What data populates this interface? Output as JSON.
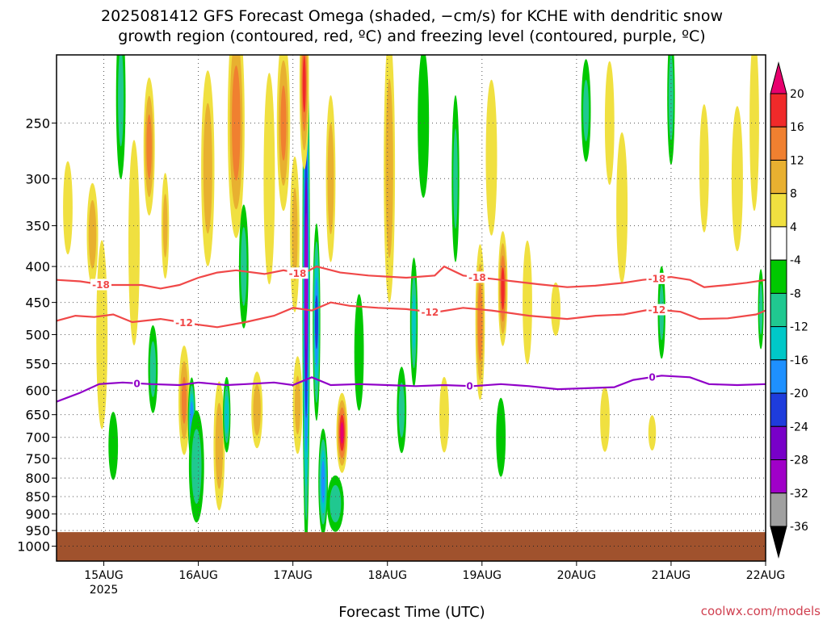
{
  "title": {
    "line1": "2025081412 GFS Forecast Omega (shaded, −cm/s) for KCHE with dendritic snow",
    "line2": "growth region (contoured, red, ºC) and freezing level (contoured, purple, ºC)"
  },
  "credit": "coolwx.com/models",
  "colors": {
    "snow_growth": "#f04848",
    "freezing": "#9000c8",
    "ground": "#a0522d",
    "grid": "#555555"
  },
  "chart_data": {
    "type": "heatmap",
    "title": "2025081412 GFS Forecast Omega (shaded, −cm/s) for KCHE with dendritic snow growth region (contoured, red, ºC) and freezing level (contoured, purple, ºC)",
    "xlabel": "Forecast Time (UTC)",
    "ylabel": "",
    "y_scale": "log",
    "y_reversed": true,
    "xlim_days": [
      14.5,
      22.0
    ],
    "ylim_hpa": [
      200,
      1050
    ],
    "x_ticks": [
      {
        "value": 15,
        "label": "15AUG",
        "sublabel": "2025"
      },
      {
        "value": 16,
        "label": "16AUG"
      },
      {
        "value": 17,
        "label": "17AUG"
      },
      {
        "value": 18,
        "label": "18AUG"
      },
      {
        "value": 19,
        "label": "19AUG"
      },
      {
        "value": 20,
        "label": "20AUG"
      },
      {
        "value": 21,
        "label": "21AUG"
      },
      {
        "value": 22,
        "label": "22AUG"
      }
    ],
    "y_ticks": [
      250,
      300,
      350,
      400,
      450,
      500,
      550,
      600,
      650,
      700,
      750,
      800,
      850,
      900,
      950,
      1000
    ],
    "grid": true,
    "colorbar": {
      "levels": [
        20,
        16,
        12,
        8,
        4,
        -4,
        -8,
        -12,
        -16,
        -20,
        -24,
        -28,
        -32,
        -36
      ],
      "colors": [
        "#e8006e",
        "#f02a2a",
        "#f08030",
        "#e8b030",
        "#f0e040",
        "#ffffff",
        "#00c800",
        "#20c890",
        "#00c8c8",
        "#1e90ff",
        "#1e3cdc",
        "#7800c8",
        "#a000c8",
        "#a0a0a0",
        "#000000"
      ]
    },
    "contours": [
      {
        "name": "-18",
        "group": "snow_growth",
        "labels": [
          {
            "x": 14.97,
            "text": "-18"
          },
          {
            "x": 17.05,
            "text": "-18"
          },
          {
            "x": 18.95,
            "text": "-18"
          },
          {
            "x": 20.85,
            "text": "-18"
          }
        ],
        "points": [
          [
            14.5,
            418
          ],
          [
            14.75,
            420
          ],
          [
            15.0,
            425
          ],
          [
            15.4,
            425
          ],
          [
            15.6,
            430
          ],
          [
            15.8,
            425
          ],
          [
            16.0,
            415
          ],
          [
            16.2,
            408
          ],
          [
            16.4,
            405
          ],
          [
            16.7,
            410
          ],
          [
            16.9,
            405
          ],
          [
            17.1,
            410
          ],
          [
            17.25,
            400
          ],
          [
            17.5,
            408
          ],
          [
            17.8,
            412
          ],
          [
            18.2,
            415
          ],
          [
            18.5,
            412
          ],
          [
            18.6,
            400
          ],
          [
            18.8,
            412
          ],
          [
            19.2,
            418
          ],
          [
            19.6,
            424
          ],
          [
            19.9,
            428
          ],
          [
            20.2,
            426
          ],
          [
            20.5,
            422
          ],
          [
            20.7,
            418
          ],
          [
            21.0,
            414
          ],
          [
            21.2,
            418
          ],
          [
            21.35,
            428
          ],
          [
            21.6,
            425
          ],
          [
            21.8,
            422
          ],
          [
            22.0,
            418
          ]
        ]
      },
      {
        "name": "-12",
        "group": "snow_growth",
        "labels": [
          {
            "x": 15.85,
            "text": "-12"
          },
          {
            "x": 18.45,
            "text": "-12"
          },
          {
            "x": 20.85,
            "text": "-12"
          }
        ],
        "points": [
          [
            14.5,
            478
          ],
          [
            14.7,
            470
          ],
          [
            14.9,
            472
          ],
          [
            15.1,
            468
          ],
          [
            15.3,
            480
          ],
          [
            15.6,
            475
          ],
          [
            15.9,
            482
          ],
          [
            16.2,
            488
          ],
          [
            16.5,
            480
          ],
          [
            16.8,
            470
          ],
          [
            17.0,
            458
          ],
          [
            17.2,
            462
          ],
          [
            17.4,
            450
          ],
          [
            17.6,
            455
          ],
          [
            17.9,
            458
          ],
          [
            18.2,
            460
          ],
          [
            18.5,
            465
          ],
          [
            18.8,
            458
          ],
          [
            19.1,
            462
          ],
          [
            19.5,
            470
          ],
          [
            19.9,
            475
          ],
          [
            20.2,
            470
          ],
          [
            20.5,
            468
          ],
          [
            20.8,
            460
          ],
          [
            21.1,
            464
          ],
          [
            21.3,
            475
          ],
          [
            21.6,
            474
          ],
          [
            21.9,
            468
          ],
          [
            22.0,
            462
          ]
        ]
      },
      {
        "name": "0",
        "group": "freezing",
        "labels": [
          {
            "x": 15.35,
            "text": "0"
          },
          {
            "x": 18.87,
            "text": "0"
          },
          {
            "x": 20.8,
            "text": "0"
          }
        ],
        "points": [
          [
            14.5,
            623
          ],
          [
            14.75,
            605
          ],
          [
            14.95,
            588
          ],
          [
            15.2,
            585
          ],
          [
            15.5,
            588
          ],
          [
            15.8,
            590
          ],
          [
            16.0,
            585
          ],
          [
            16.3,
            590
          ],
          [
            16.5,
            588
          ],
          [
            16.8,
            585
          ],
          [
            17.0,
            590
          ],
          [
            17.2,
            575
          ],
          [
            17.4,
            590
          ],
          [
            17.7,
            588
          ],
          [
            18.0,
            590
          ],
          [
            18.3,
            592
          ],
          [
            18.6,
            590
          ],
          [
            18.9,
            592
          ],
          [
            19.2,
            588
          ],
          [
            19.5,
            592
          ],
          [
            19.8,
            598
          ],
          [
            20.1,
            596
          ],
          [
            20.4,
            594
          ],
          [
            20.6,
            580
          ],
          [
            20.9,
            572
          ],
          [
            21.2,
            575
          ],
          [
            21.4,
            588
          ],
          [
            21.7,
            590
          ],
          [
            22.0,
            588
          ]
        ]
      }
    ],
    "omega_blobs": [
      {
        "x": 14.62,
        "p": 330,
        "dx": 0.05,
        "dp": 50,
        "v": 7
      },
      {
        "x": 14.88,
        "p": 360,
        "dx": 0.06,
        "dp": 60,
        "v": 10
      },
      {
        "x": 14.98,
        "p": 500,
        "dx": 0.06,
        "dp": 150,
        "v": 5
      },
      {
        "x": 15.1,
        "p": 720,
        "dx": 0.05,
        "dp": 80,
        "v": -7
      },
      {
        "x": 15.18,
        "p": 230,
        "dx": 0.05,
        "dp": 60,
        "v": -8
      },
      {
        "x": 15.32,
        "p": 370,
        "dx": 0.06,
        "dp": 120,
        "v": 6
      },
      {
        "x": 15.48,
        "p": 270,
        "dx": 0.06,
        "dp": 60,
        "v": 13
      },
      {
        "x": 15.52,
        "p": 560,
        "dx": 0.05,
        "dp": 80,
        "v": -9
      },
      {
        "x": 15.65,
        "p": 350,
        "dx": 0.04,
        "dp": 60,
        "v": 8
      },
      {
        "x": 15.85,
        "p": 620,
        "dx": 0.06,
        "dp": 110,
        "v": 12
      },
      {
        "x": 15.93,
        "p": 660,
        "dx": 0.04,
        "dp": 90,
        "v": -19
      },
      {
        "x": 15.98,
        "p": 770,
        "dx": 0.08,
        "dp": 140,
        "v": -10
      },
      {
        "x": 16.1,
        "p": 290,
        "dx": 0.07,
        "dp": 90,
        "v": 10
      },
      {
        "x": 16.22,
        "p": 720,
        "dx": 0.06,
        "dp": 150,
        "v": 10
      },
      {
        "x": 16.3,
        "p": 650,
        "dx": 0.04,
        "dp": 80,
        "v": -14
      },
      {
        "x": 16.4,
        "p": 250,
        "dx": 0.09,
        "dp": 90,
        "v": 14
      },
      {
        "x": 16.48,
        "p": 400,
        "dx": 0.05,
        "dp": 80,
        "v": -9
      },
      {
        "x": 16.62,
        "p": 640,
        "dx": 0.06,
        "dp": 80,
        "v": 10
      },
      {
        "x": 16.75,
        "p": 300,
        "dx": 0.06,
        "dp": 100,
        "v": 5
      },
      {
        "x": 16.9,
        "p": 250,
        "dx": 0.07,
        "dp": 70,
        "v": 12
      },
      {
        "x": 17.02,
        "p": 360,
        "dx": 0.05,
        "dp": 90,
        "v": 8
      },
      {
        "x": 17.05,
        "p": 630,
        "dx": 0.05,
        "dp": 100,
        "v": 8
      },
      {
        "x": 17.14,
        "p": 420,
        "dx": 0.04,
        "dp": 300,
        "v": -30
      },
      {
        "x": 17.12,
        "p": 220,
        "dx": 0.05,
        "dp": 60,
        "v": 16
      },
      {
        "x": 17.25,
        "p": 480,
        "dx": 0.04,
        "dp": 150,
        "v": -20
      },
      {
        "x": 17.32,
        "p": 810,
        "dx": 0.05,
        "dp": 140,
        "v": -18
      },
      {
        "x": 17.4,
        "p": 300,
        "dx": 0.05,
        "dp": 80,
        "v": 10
      },
      {
        "x": 17.52,
        "p": 690,
        "dx": 0.06,
        "dp": 90,
        "v": 20
      },
      {
        "x": 17.45,
        "p": 870,
        "dx": 0.09,
        "dp": 80,
        "v": -10
      },
      {
        "x": 17.7,
        "p": 530,
        "dx": 0.05,
        "dp": 100,
        "v": -6
      },
      {
        "x": 18.02,
        "p": 290,
        "dx": 0.06,
        "dp": 120,
        "v": 10
      },
      {
        "x": 18.15,
        "p": 640,
        "dx": 0.05,
        "dp": 90,
        "v": -9
      },
      {
        "x": 18.28,
        "p": 480,
        "dx": 0.04,
        "dp": 100,
        "v": -12
      },
      {
        "x": 18.38,
        "p": 250,
        "dx": 0.06,
        "dp": 60,
        "v": -7
      },
      {
        "x": 18.6,
        "p": 650,
        "dx": 0.05,
        "dp": 80,
        "v": 6
      },
      {
        "x": 18.72,
        "p": 300,
        "dx": 0.04,
        "dp": 80,
        "v": -8
      },
      {
        "x": 18.98,
        "p": 480,
        "dx": 0.05,
        "dp": 120,
        "v": 14
      },
      {
        "x": 19.22,
        "p": 430,
        "dx": 0.05,
        "dp": 80,
        "v": 17
      },
      {
        "x": 19.1,
        "p": 280,
        "dx": 0.06,
        "dp": 70,
        "v": 7
      },
      {
        "x": 19.2,
        "p": 700,
        "dx": 0.05,
        "dp": 90,
        "v": -7
      },
      {
        "x": 19.48,
        "p": 450,
        "dx": 0.05,
        "dp": 90,
        "v": 6
      },
      {
        "x": 19.78,
        "p": 460,
        "dx": 0.05,
        "dp": 40,
        "v": 5
      },
      {
        "x": 20.1,
        "p": 240,
        "dx": 0.05,
        "dp": 40,
        "v": -8
      },
      {
        "x": 20.3,
        "p": 660,
        "dx": 0.05,
        "dp": 70,
        "v": 5
      },
      {
        "x": 20.35,
        "p": 250,
        "dx": 0.05,
        "dp": 50,
        "v": 6
      },
      {
        "x": 20.48,
        "p": 330,
        "dx": 0.06,
        "dp": 80,
        "v": 7
      },
      {
        "x": 20.8,
        "p": 690,
        "dx": 0.04,
        "dp": 40,
        "v": 5
      },
      {
        "x": 20.9,
        "p": 465,
        "dx": 0.04,
        "dp": 70,
        "v": -8
      },
      {
        "x": 21.0,
        "p": 230,
        "dx": 0.04,
        "dp": 50,
        "v": -9
      },
      {
        "x": 21.35,
        "p": 290,
        "dx": 0.05,
        "dp": 60,
        "v": 5
      },
      {
        "x": 21.7,
        "p": 300,
        "dx": 0.06,
        "dp": 70,
        "v": 6
      },
      {
        "x": 21.88,
        "p": 250,
        "dx": 0.05,
        "dp": 70,
        "v": 7
      },
      {
        "x": 21.95,
        "p": 460,
        "dx": 0.03,
        "dp": 60,
        "v": -9
      }
    ],
    "ground_top_hpa": 955
  }
}
